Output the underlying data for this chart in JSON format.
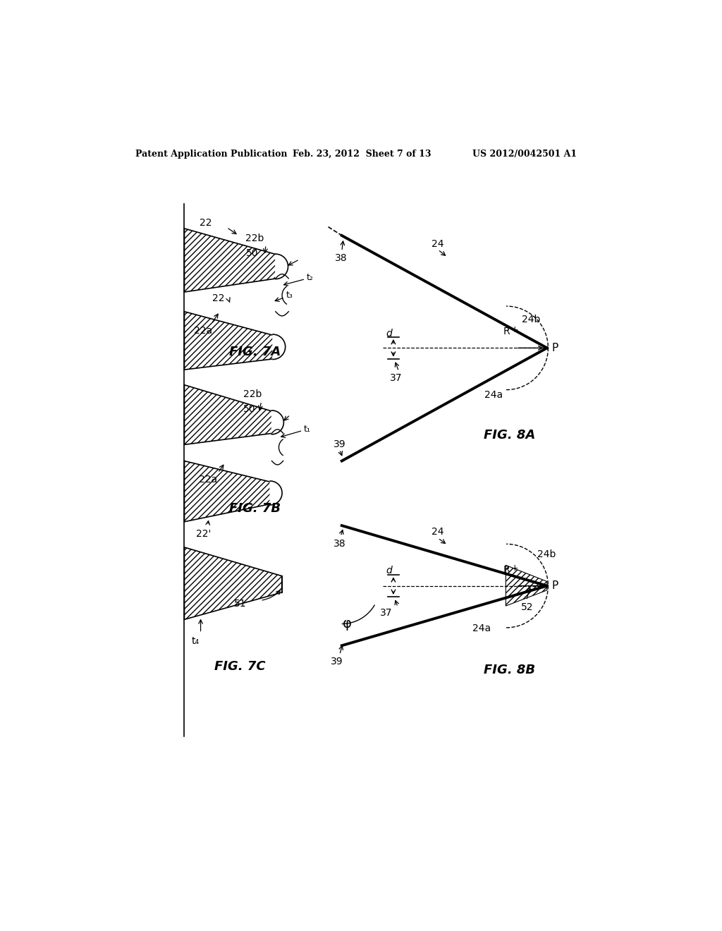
{
  "header_left": "Patent Application Publication",
  "header_mid": "Feb. 23, 2012  Sheet 7 of 13",
  "header_right": "US 2012/0042501 A1",
  "background_color": "#ffffff"
}
